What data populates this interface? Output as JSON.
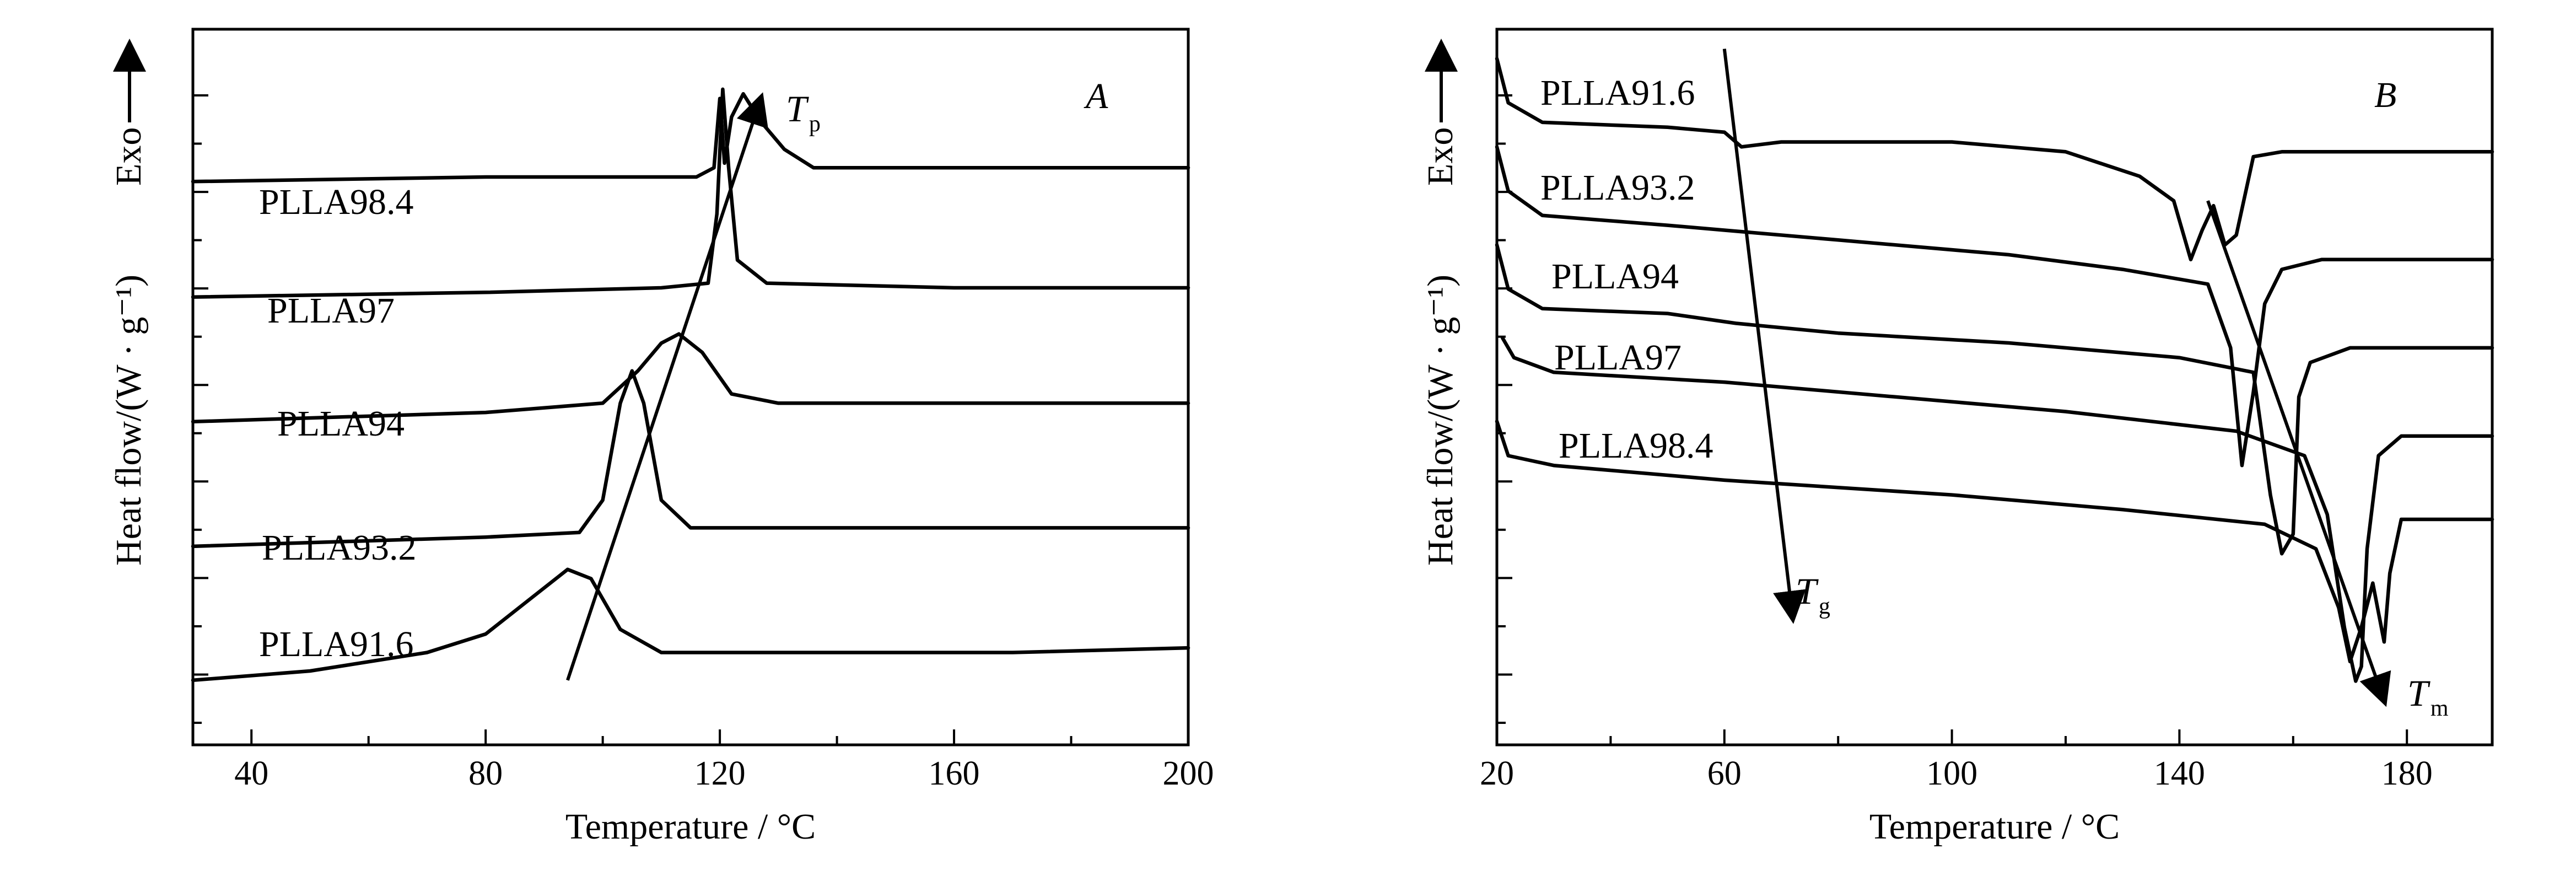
{
  "chart_data": [
    {
      "panel": "A",
      "type": "line",
      "xlabel": "Temperature / °C",
      "ylabel": "Heat flow/(W · g⁻¹)",
      "exo_label": "Exo",
      "xlim": [
        30,
        200
      ],
      "xticks": [
        "40",
        "80",
        "120",
        "160",
        "200"
      ],
      "grid": false,
      "annotation": {
        "symbol": "T",
        "sub": "p"
      },
      "trend_arrow": {
        "from": [
          94,
          0.4
        ],
        "to": [
          127,
          13.0
        ]
      },
      "series": [
        {
          "name": "PLLA91.6",
          "baseline": 0.9,
          "points": [
            [
              30,
              0.4
            ],
            [
              50,
              0.6
            ],
            [
              70,
              1.0
            ],
            [
              80,
              1.4
            ],
            [
              88,
              2.2
            ],
            [
              94,
              2.8
            ],
            [
              98,
              2.6
            ],
            [
              103,
              1.5
            ],
            [
              110,
              1.0
            ],
            [
              140,
              1.0
            ],
            [
              170,
              1.0
            ],
            [
              200,
              1.1
            ]
          ]
        },
        {
          "name": "PLLA93.2",
          "baseline": 3.6,
          "points": [
            [
              30,
              3.3
            ],
            [
              80,
              3.5
            ],
            [
              96,
              3.6
            ],
            [
              100,
              4.3
            ],
            [
              103,
              6.4
            ],
            [
              105,
              7.1
            ],
            [
              107,
              6.4
            ],
            [
              110,
              4.3
            ],
            [
              115,
              3.7
            ],
            [
              150,
              3.7
            ],
            [
              200,
              3.7
            ]
          ]
        },
        {
          "name": "PLLA94",
          "baseline": 6.3,
          "points": [
            [
              30,
              6.0
            ],
            [
              80,
              6.2
            ],
            [
              100,
              6.4
            ],
            [
              106,
              7.1
            ],
            [
              110,
              7.7
            ],
            [
              113,
              7.9
            ],
            [
              117,
              7.5
            ],
            [
              122,
              6.6
            ],
            [
              130,
              6.4
            ],
            [
              200,
              6.4
            ]
          ]
        },
        {
          "name": "PLLA97",
          "baseline": 8.8,
          "points": [
            [
              30,
              8.7
            ],
            [
              80,
              8.8
            ],
            [
              110,
              8.9
            ],
            [
              118,
              9.0
            ],
            [
              119.5,
              10.5
            ],
            [
              120.5,
              13.2
            ],
            [
              121.5,
              11.5
            ],
            [
              123,
              9.5
            ],
            [
              128,
              9.0
            ],
            [
              160,
              8.9
            ],
            [
              200,
              8.9
            ]
          ]
        },
        {
          "name": "PLLA98.4",
          "baseline": 11.3,
          "points": [
            [
              30,
              11.2
            ],
            [
              80,
              11.3
            ],
            [
              116,
              11.3
            ],
            [
              119,
              11.5
            ],
            [
              120,
              13.0
            ],
            [
              120.8,
              11.6
            ],
            [
              122,
              12.6
            ],
            [
              124,
              13.1
            ],
            [
              127,
              12.5
            ],
            [
              131,
              11.9
            ],
            [
              136,
              11.5
            ],
            [
              160,
              11.5
            ],
            [
              200,
              11.5
            ]
          ]
        }
      ]
    },
    {
      "panel": "B",
      "type": "line",
      "xlabel": "Temperature / °C",
      "ylabel": "Heat flow/(W · g⁻¹)",
      "exo_label": "Exo",
      "xlim": [
        20,
        195
      ],
      "xticks": [
        "20",
        "60",
        "100",
        "140",
        "180"
      ],
      "grid": false,
      "annotations": [
        {
          "symbol": "T",
          "sub": "g"
        },
        {
          "symbol": "T",
          "sub": "m"
        }
      ],
      "trend_arrows": [
        {
          "from": [
            60,
            13.6
          ],
          "to": [
            72,
            2.0
          ]
        },
        {
          "from": [
            145,
            10.5
          ],
          "to": [
            176,
            0.3
          ]
        }
      ],
      "series": [
        {
          "name": "PLLA91.6",
          "points": [
            [
              20,
              13.4
            ],
            [
              22,
              12.5
            ],
            [
              28,
              12.1
            ],
            [
              50,
              12.0
            ],
            [
              60,
              11.9
            ],
            [
              63,
              11.6
            ],
            [
              70,
              11.7
            ],
            [
              100,
              11.7
            ],
            [
              120,
              11.5
            ],
            [
              133,
              11.0
            ],
            [
              139,
              10.5
            ],
            [
              142,
              9.3
            ],
            [
              144,
              9.9
            ],
            [
              146,
              10.4
            ],
            [
              148,
              9.6
            ],
            [
              150,
              9.8
            ],
            [
              153,
              11.4
            ],
            [
              158,
              11.5
            ],
            [
              195,
              11.5
            ]
          ]
        },
        {
          "name": "PLLA93.2",
          "points": [
            [
              20,
              11.6
            ],
            [
              22,
              10.7
            ],
            [
              28,
              10.2
            ],
            [
              50,
              10.0
            ],
            [
              60,
              9.9
            ],
            [
              80,
              9.7
            ],
            [
              110,
              9.4
            ],
            [
              130,
              9.1
            ],
            [
              145,
              8.8
            ],
            [
              149,
              7.5
            ],
            [
              151,
              5.1
            ],
            [
              153,
              6.6
            ],
            [
              155,
              8.4
            ],
            [
              158,
              9.1
            ],
            [
              165,
              9.3
            ],
            [
              195,
              9.3
            ]
          ]
        },
        {
          "name": "PLLA94",
          "points": [
            [
              20,
              9.6
            ],
            [
              22,
              8.7
            ],
            [
              28,
              8.3
            ],
            [
              50,
              8.2
            ],
            [
              62,
              8.0
            ],
            [
              80,
              7.8
            ],
            [
              110,
              7.6
            ],
            [
              140,
              7.3
            ],
            [
              153,
              7.0
            ],
            [
              156,
              4.5
            ],
            [
              158,
              3.3
            ],
            [
              160,
              3.7
            ],
            [
              161,
              6.5
            ],
            [
              163,
              7.2
            ],
            [
              170,
              7.5
            ],
            [
              195,
              7.5
            ]
          ]
        },
        {
          "name": "PLLA97",
          "points": [
            [
              21,
              7.7
            ],
            [
              23,
              7.3
            ],
            [
              30,
              7.0
            ],
            [
              60,
              6.8
            ],
            [
              90,
              6.5
            ],
            [
              120,
              6.2
            ],
            [
              150,
              5.8
            ],
            [
              162,
              5.3
            ],
            [
              166,
              4.1
            ],
            [
              169,
              1.8
            ],
            [
              171,
              0.7
            ],
            [
              172,
              1.0
            ],
            [
              173,
              3.4
            ],
            [
              175,
              5.3
            ],
            [
              179,
              5.7
            ],
            [
              195,
              5.7
            ]
          ]
        },
        {
          "name": "PLLA98.4",
          "points": [
            [
              20,
              6.0
            ],
            [
              22,
              5.3
            ],
            [
              30,
              5.1
            ],
            [
              60,
              4.8
            ],
            [
              100,
              4.5
            ],
            [
              130,
              4.2
            ],
            [
              155,
              3.9
            ],
            [
              164,
              3.4
            ],
            [
              168,
              2.2
            ],
            [
              170,
              1.1
            ],
            [
              172,
              1.8
            ],
            [
              174,
              2.7
            ],
            [
              175,
              2.1
            ],
            [
              176,
              1.5
            ],
            [
              177,
              2.9
            ],
            [
              179,
              4.0
            ],
            [
              185,
              4.0
            ],
            [
              195,
              4.0
            ]
          ]
        }
      ]
    }
  ]
}
